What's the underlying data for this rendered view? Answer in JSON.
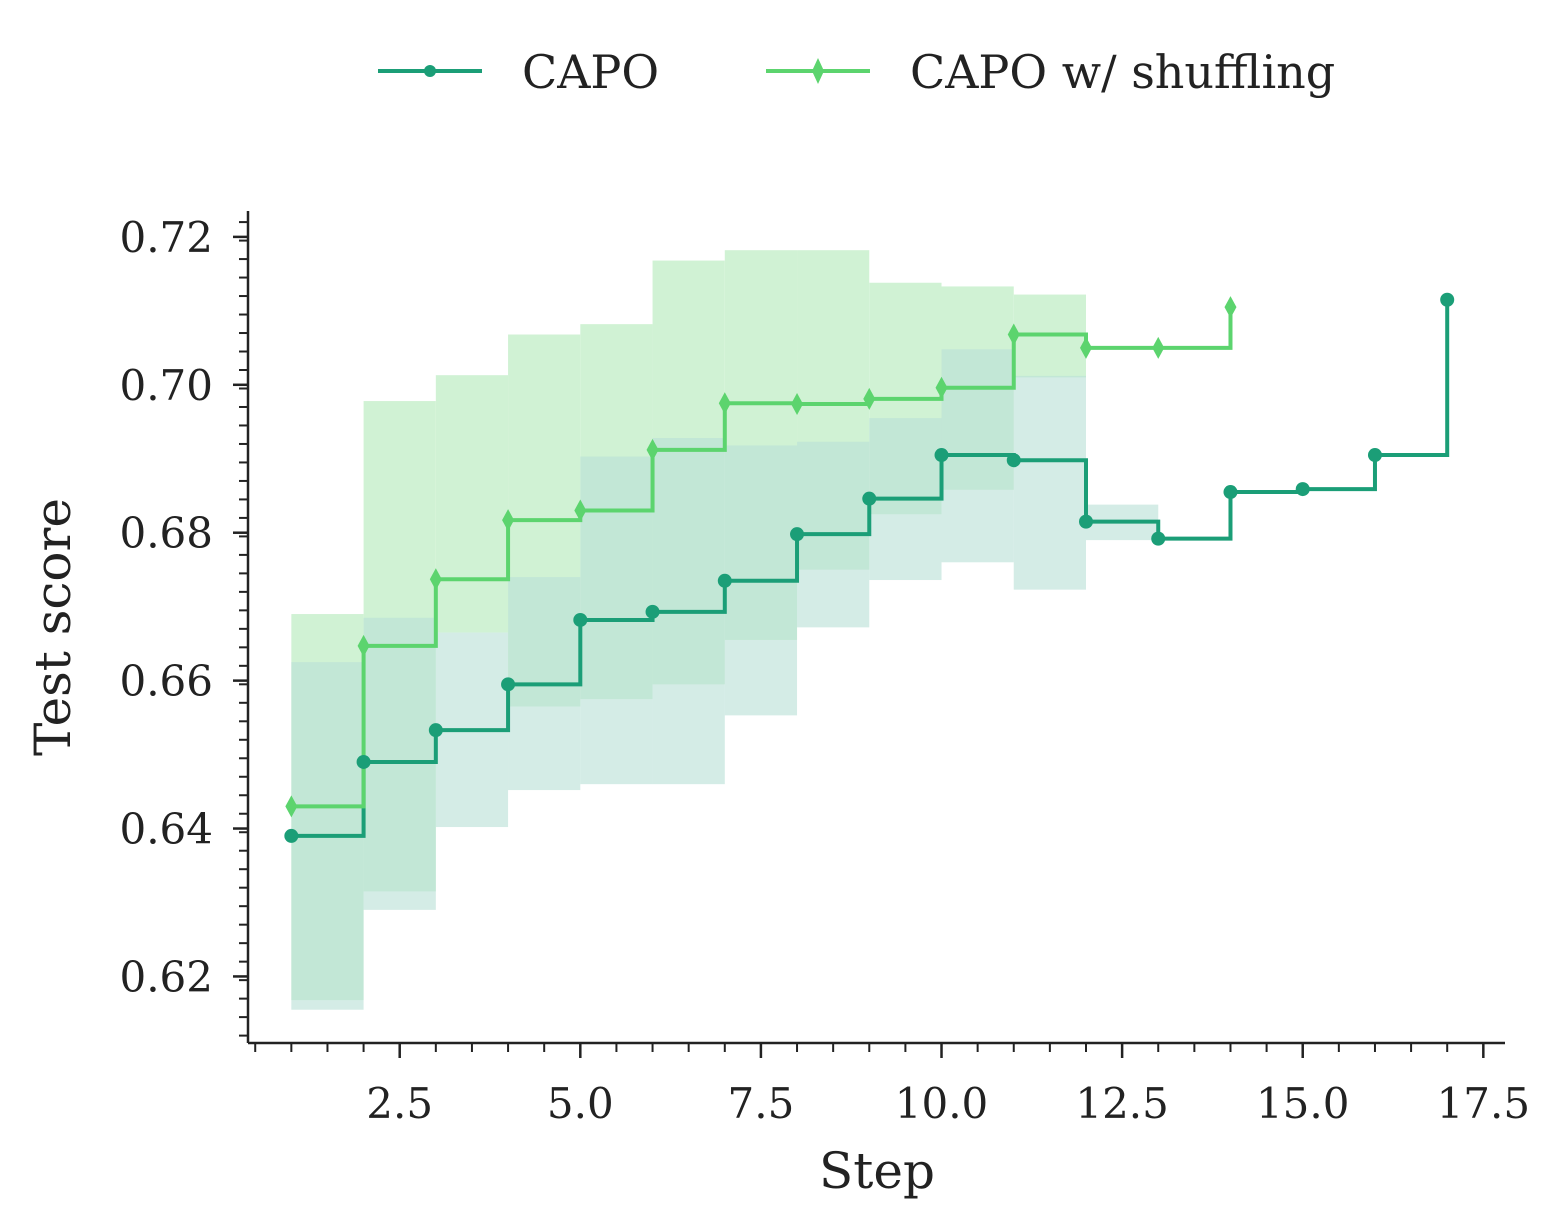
{
  "chart_data": {
    "type": "line",
    "step": "post",
    "xlabel": "Step",
    "ylabel": "Test score",
    "xlim": [
      0.4,
      17.8
    ],
    "ylim": [
      0.611,
      0.7235
    ],
    "x_ticks": [
      "2.5",
      "5.0",
      "7.5",
      "10.0",
      "12.5",
      "15.0",
      "17.5"
    ],
    "x_tick_values": [
      2.5,
      5.0,
      7.5,
      10.0,
      12.5,
      15.0,
      17.5
    ],
    "y_ticks": [
      "0.62",
      "0.64",
      "0.66",
      "0.68",
      "0.70",
      "0.72"
    ],
    "y_tick_values": [
      0.62,
      0.64,
      0.66,
      0.68,
      0.7,
      0.72
    ],
    "legend_position": "top-center",
    "series": [
      {
        "name": "CAPO",
        "color": "#1b9e77",
        "band_color": "#b9e0d6",
        "marker": "circle",
        "x": [
          1,
          2,
          3,
          4,
          5,
          6,
          7,
          8,
          9,
          10,
          11,
          12,
          13,
          14,
          15,
          16,
          17
        ],
        "y": [
          0.639,
          0.649,
          0.6533,
          0.6595,
          0.6682,
          0.6693,
          0.6735,
          0.6798,
          0.6846,
          0.6905,
          0.6898,
          0.6815,
          0.6792,
          0.6855,
          0.6859,
          0.6905,
          0.7115
        ],
        "band_upper": [
          0.6625,
          0.6685,
          0.6665,
          0.674,
          0.6903,
          0.6928,
          0.6918,
          0.6923,
          0.6955,
          0.7048,
          0.7012,
          0.6838,
          null,
          null,
          null,
          null,
          null
        ],
        "band_lower": [
          0.6155,
          0.629,
          0.6402,
          0.6452,
          0.646,
          0.646,
          0.6553,
          0.6672,
          0.6736,
          0.676,
          0.6723,
          0.679,
          null,
          null,
          null,
          null,
          null
        ]
      },
      {
        "name": "CAPO w/ shuffling",
        "color": "#5cd46e",
        "band_color": "#d0f2d4",
        "marker": "diamond",
        "x": [
          1,
          2,
          3,
          4,
          5,
          6,
          7,
          8,
          9,
          10,
          11,
          12,
          13,
          14
        ],
        "y": [
          0.643,
          0.6647,
          0.6737,
          0.6817,
          0.683,
          0.6912,
          0.6975,
          0.6974,
          0.6981,
          0.6996,
          0.7068,
          0.705,
          0.705,
          0.7105
        ],
        "band_upper": [
          0.669,
          0.6978,
          0.7013,
          0.7068,
          0.7082,
          0.7168,
          0.7182,
          0.7182,
          0.7138,
          0.7133,
          0.7122,
          null,
          null,
          null
        ],
        "band_lower": [
          0.6168,
          0.6315,
          0.6665,
          0.6565,
          0.6575,
          0.6595,
          0.6655,
          0.675,
          0.6825,
          0.6858,
          0.701,
          null,
          null,
          null
        ]
      }
    ]
  }
}
